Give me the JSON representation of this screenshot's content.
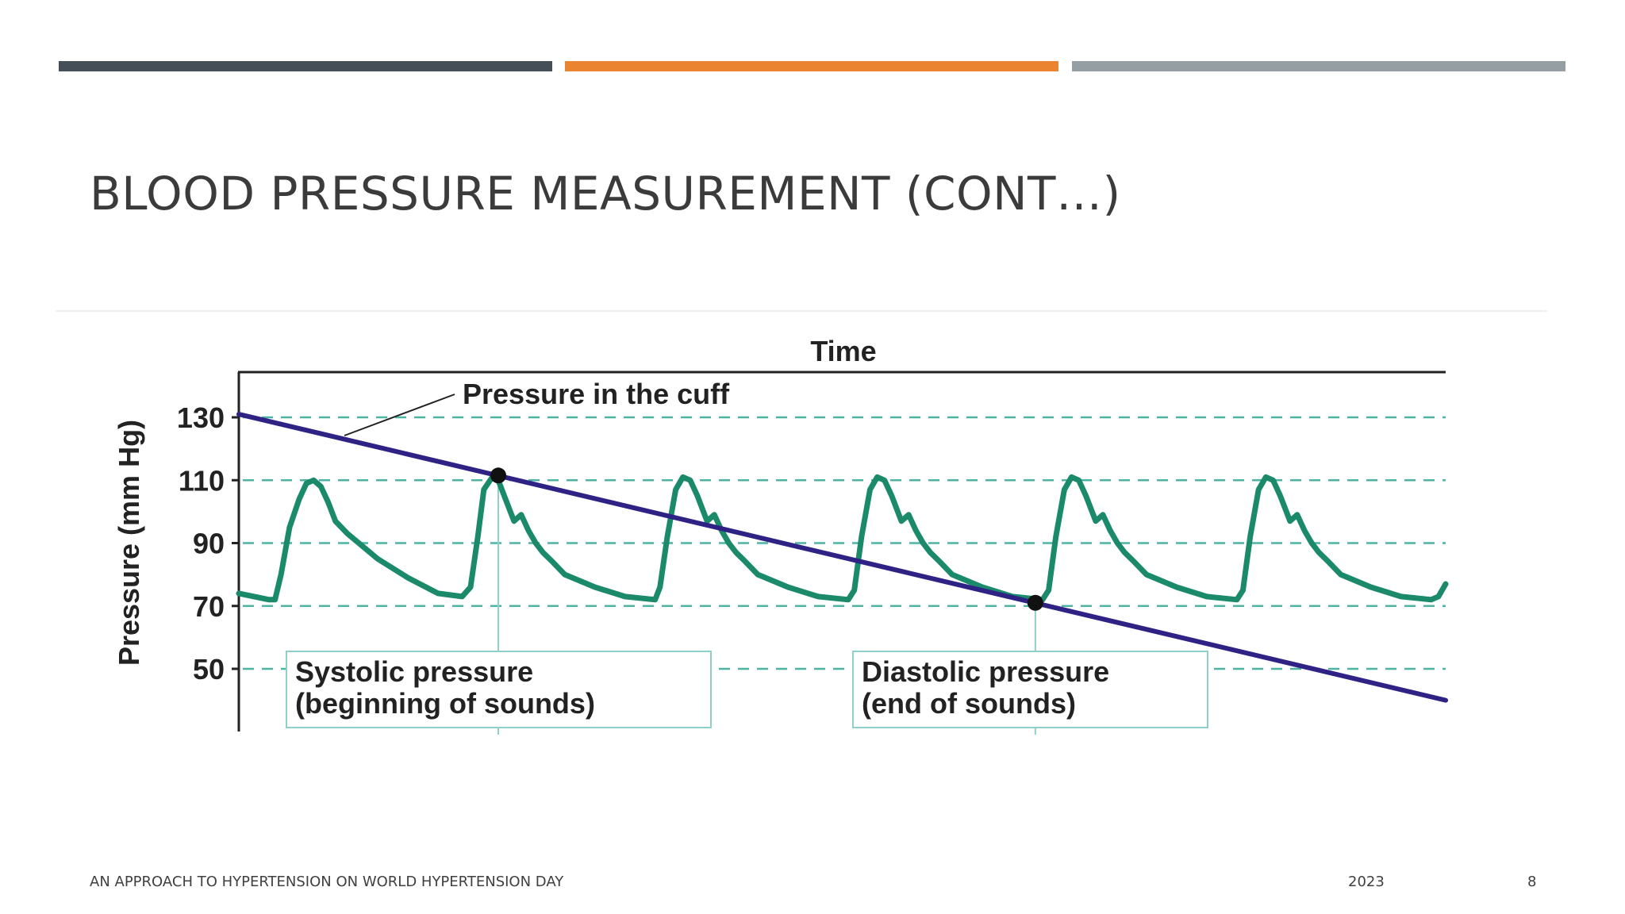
{
  "slide": {
    "title": "BLOOD PRESSURE MEASUREMENT (CONT…)",
    "accent_colors": [
      "#444f58",
      "#ea8430",
      "#959ea2"
    ]
  },
  "footer": {
    "left": "AN APPROACH TO HYPERTENSION ON WORLD HYPERTENSION DAY",
    "year": "2023",
    "page": "8"
  },
  "chart_data": {
    "type": "line",
    "title": "Time",
    "xlabel": "Time",
    "ylabel": "Pressure (mm Hg)",
    "y_ticks": [
      130,
      110,
      90,
      70,
      50
    ],
    "ylim": [
      27,
      144
    ],
    "grid": true,
    "colors": {
      "cuff": "#2e2385",
      "arterial": "#1b8a6b",
      "grid": "#4fb3a3",
      "box": "#8fd0c9"
    },
    "series": [
      {
        "name": "Pressure in the cuff",
        "label": "Pressure in the cuff",
        "x": [
          0,
          100
        ],
        "y": [
          131,
          40
        ]
      },
      {
        "name": "Arterial pressure",
        "x": [
          0,
          2.5,
          3.0,
          3.5,
          4.2,
          5.0,
          5.6,
          6.2,
          6.8,
          7.4,
          8.0,
          9.0,
          11.5,
          14.0,
          16.5,
          18.5,
          19.2,
          19.8,
          20.3,
          21.0,
          21.5,
          22.0,
          22.8,
          23.4,
          24.0,
          24.6,
          25.2,
          26.0,
          27.0,
          29.5,
          32.0,
          34.5,
          34.9,
          35.5,
          36.2,
          36.8,
          37.4,
          38.0,
          38.8,
          39.4,
          40.0,
          40.6,
          41.2,
          42.0,
          43.0,
          45.5,
          48.0,
          50.5,
          51.0,
          51.6,
          52.3,
          52.9,
          53.5,
          54.1,
          54.9,
          55.5,
          56.1,
          56.7,
          57.3,
          58.1,
          59.1,
          61.6,
          64.1,
          66.6,
          67.1,
          67.7,
          68.4,
          69.0,
          69.6,
          70.2,
          71.0,
          71.6,
          72.2,
          72.8,
          73.4,
          74.2,
          75.2,
          77.7,
          80.2,
          82.7,
          83.2,
          83.8,
          84.5,
          85.1,
          85.7,
          86.3,
          87.1,
          87.7,
          88.3,
          88.9,
          89.5,
          90.3,
          91.3,
          93.8,
          96.3,
          98.8,
          99.4,
          100
        ],
        "y": [
          74,
          72,
          72,
          80,
          95,
          104,
          109,
          110,
          108,
          103,
          97,
          93,
          85,
          79,
          74,
          73,
          76,
          92,
          107,
          111,
          110,
          105,
          97,
          99,
          94,
          90,
          87,
          84,
          80,
          76,
          73,
          72,
          76,
          92,
          107,
          111,
          110,
          105,
          97,
          99,
          94,
          90,
          87,
          84,
          80,
          76,
          73,
          72,
          75,
          92,
          107,
          111,
          110,
          105,
          97,
          99,
          94,
          90,
          87,
          84,
          80,
          76,
          73,
          72,
          75,
          92,
          107,
          111,
          110,
          105,
          97,
          99,
          94,
          90,
          87,
          84,
          80,
          76,
          73,
          72,
          75,
          92,
          107,
          111,
          110,
          105,
          97,
          99,
          94,
          90,
          87,
          84,
          80,
          76,
          73,
          72,
          73,
          77
        ]
      }
    ],
    "annotations": [
      {
        "name": "systolic",
        "lines": [
          "Systolic pressure",
          "(beginning of sounds)"
        ],
        "point": {
          "x": 21.5,
          "y": 111.5
        }
      },
      {
        "name": "diastolic",
        "lines": [
          "Diastolic pressure",
          "(end of sounds)"
        ],
        "point": {
          "x": 66,
          "y": 71
        }
      }
    ]
  }
}
